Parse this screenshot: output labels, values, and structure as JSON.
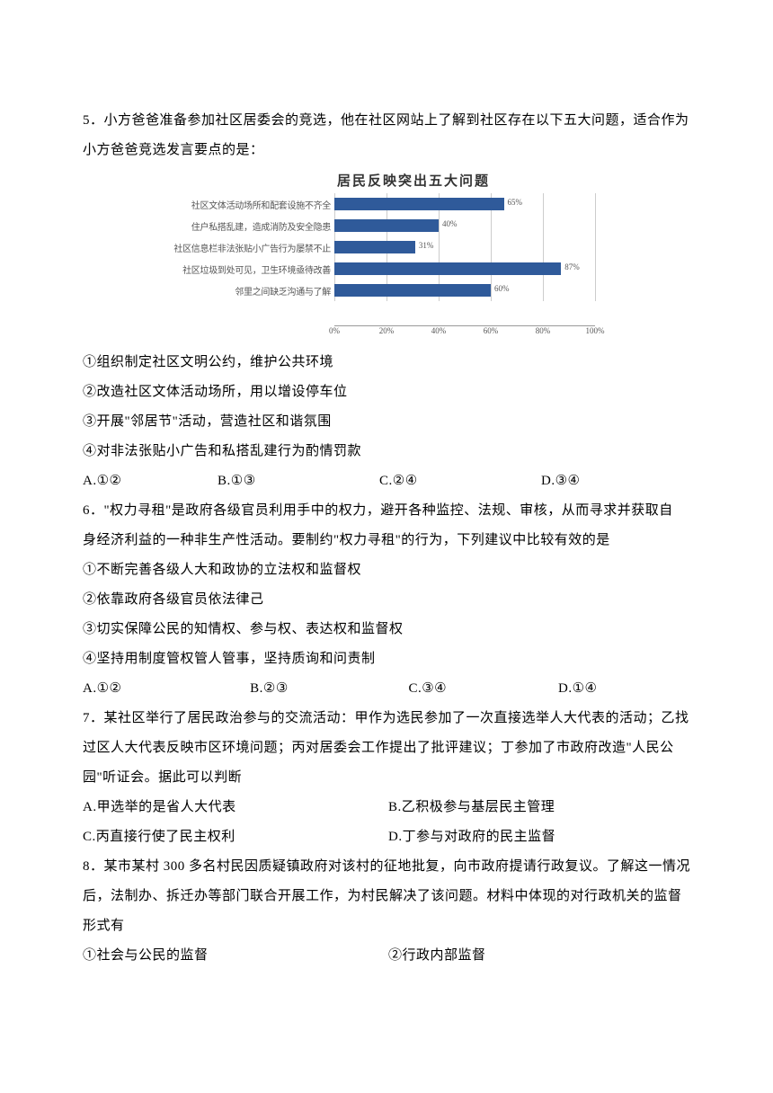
{
  "q5": {
    "stem1": "5．小方爸爸准备参加社区居委会的竞选，他在社区网站上了解到社区存在以下五大问题，适合作为",
    "stem2": "小方爸爸竞选发言要点的是：",
    "chart": {
      "type": "bar",
      "title": "居民反映突出五大问题",
      "categories": [
        "社区文体活动场所和配套设施不齐全",
        "住户私搭乱建，造成消防及安全隐患",
        "社区信息栏非法张贴小广告行为屡禁不止",
        "社区垃圾到处可见，卫生环境亟待改善",
        "邻里之间缺乏沟通与了解"
      ],
      "values": [
        65,
        40,
        31,
        87,
        60
      ],
      "value_labels": [
        "65%",
        "40%",
        "31%",
        "87%",
        "60%"
      ],
      "bar_color": "#2f5a9a",
      "xlim": [
        0,
        100
      ],
      "xtick_step": 20,
      "xticks": [
        "0%",
        "20%",
        "40%",
        "60%",
        "80%",
        "100%"
      ],
      "grid_color": "#cccccc",
      "axis_color": "#999999",
      "background_color": "#ffffff",
      "label_fontsize": 10,
      "title_fontsize": 15
    },
    "items": [
      "①组织制定社区文明公约，维护公共环境",
      "②改造社区文体活动场所，用以增设停车位",
      "③开展\"邻居节\"活动，营造社区和谐氛围",
      "④对非法张贴小广告和私搭乱建行为酌情罚款"
    ],
    "options": {
      "a": "A.①②",
      "b": "B.①③",
      "c": "C.②④",
      "d": "D.③④"
    }
  },
  "q6": {
    "stem1": "6．\"权力寻租\"是政府各级官员利用手中的权力，避开各种监控、法规、审核，从而寻求并获取自",
    "stem2": "身经济利益的一种非生产性活动。要制约\"权力寻租\"的行为，下列建议中比较有效的是",
    "items": [
      "①不断完善各级人大和政协的立法权和监督权",
      "②依靠政府各级官员依法律己",
      "③切实保障公民的知情权、参与权、表达权和监督权",
      "④坚持用制度管权管人管事，坚持质询和问责制"
    ],
    "options": {
      "a": "A.①②",
      "b": "B.②③",
      "c": "C.③④",
      "d": "D.①④"
    }
  },
  "q7": {
    "stem1": "7．某社区举行了居民政治参与的交流活动：甲作为选民参加了一次直接选举人大代表的活动；乙找",
    "stem2": "过区人大代表反映市区环境问题；丙对居委会工作提出了批评建议；丁参加了市政府改造\"人民公",
    "stem3": "园\"听证会。据此可以判断",
    "options": {
      "a": "A.甲选举的是省人大代表",
      "b": "B.乙积极参与基层民主管理",
      "c": "C.丙直接行使了民主权利",
      "d": "D.丁参与对政府的民主监督"
    }
  },
  "q8": {
    "stem1": "8．某市某村 300 多名村民因质疑镇政府对该村的征地批复，向市政府提请行政复议。了解这一情况",
    "stem2": "后，法制办、拆迁办等部门联合开展工作，为村民解决了该问题。材料中体现的对行政机关的监督",
    "stem3": "形式有",
    "items": {
      "i1": "①社会与公民的监督",
      "i2": "②行政内部监督"
    }
  }
}
